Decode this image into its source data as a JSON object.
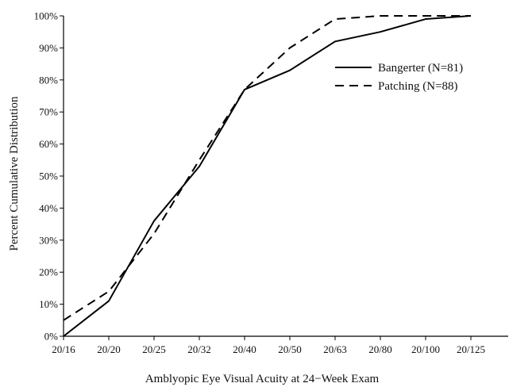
{
  "chart_data": {
    "type": "line",
    "title": "",
    "xlabel": "Amblyopic Eye Visual Acuity at 24−Week Exam",
    "ylabel": "Percent Cumulative Distribution",
    "categories": [
      "20/16",
      "20/20",
      "20/25",
      "20/32",
      "20/40",
      "20/50",
      "20/63",
      "20/80",
      "20/100",
      "20/125"
    ],
    "yticks": [
      "0%",
      "10%",
      "20%",
      "30%",
      "40%",
      "50%",
      "60%",
      "70%",
      "80%",
      "90%",
      "100%"
    ],
    "ylim": [
      0,
      100
    ],
    "grid": false,
    "legend_position": "right",
    "series": [
      {
        "name": "Bangerter (N=81)",
        "line_style": "solid",
        "color": "#000000",
        "values": [
          0,
          11,
          36,
          53,
          77,
          83,
          92,
          95,
          99,
          100
        ]
      },
      {
        "name": "Patching (N=88)",
        "line_style": "dashed",
        "color": "#000000",
        "values": [
          5,
          14,
          32,
          55,
          77,
          90,
          99,
          100,
          100,
          100
        ]
      }
    ]
  }
}
